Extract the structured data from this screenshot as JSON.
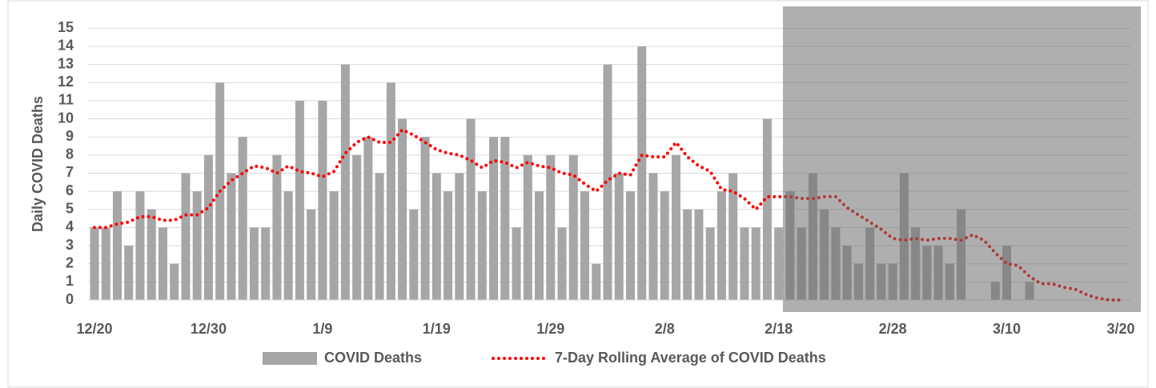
{
  "chart_data": {
    "type": "bar_line",
    "y_label": "Daily COVID Deaths",
    "categories": [
      "12/20",
      null,
      null,
      null,
      null,
      null,
      null,
      null,
      null,
      null,
      "12/30",
      null,
      null,
      null,
      null,
      null,
      null,
      null,
      null,
      null,
      "1/9",
      null,
      null,
      null,
      null,
      null,
      null,
      null,
      null,
      null,
      "1/19",
      null,
      null,
      null,
      null,
      null,
      null,
      null,
      null,
      null,
      "1/29",
      null,
      null,
      null,
      null,
      null,
      null,
      null,
      null,
      null,
      "2/8",
      null,
      null,
      null,
      null,
      null,
      null,
      null,
      null,
      null,
      "2/18",
      null,
      null,
      null,
      null,
      null,
      null,
      null,
      null,
      null,
      "2/28",
      null,
      null,
      null,
      null,
      null,
      null,
      null,
      null,
      null,
      "3/10",
      null,
      null,
      null,
      null,
      null,
      null,
      null,
      null,
      null,
      "3/20"
    ],
    "series": [
      {
        "name": "COVID Deaths",
        "type": "bar",
        "color": "#a6a6a6",
        "values": [
          4,
          4,
          6,
          3,
          6,
          5,
          4,
          2,
          7,
          6,
          8,
          12,
          7,
          9,
          4,
          4,
          8,
          6,
          11,
          5,
          11,
          6,
          13,
          8,
          9,
          7,
          12,
          10,
          5,
          9,
          7,
          6,
          7,
          10,
          6,
          9,
          9,
          4,
          8,
          6,
          8,
          4,
          8,
          6,
          2,
          13,
          7,
          6,
          14,
          7,
          6,
          8,
          5,
          5,
          4,
          6,
          7,
          4,
          4,
          10,
          4,
          6,
          4,
          7,
          5,
          4,
          3,
          2,
          4,
          2,
          2,
          7,
          4,
          3,
          3,
          2,
          5,
          0,
          0,
          1,
          3,
          0,
          1,
          0,
          0,
          0,
          0,
          0,
          0,
          0,
          0
        ]
      },
      {
        "name": "7-Day Rolling Average of COVID Deaths",
        "type": "line",
        "color": "#ff0000",
        "values": [
          4,
          4,
          4.2,
          4.3,
          4.6,
          4.6,
          4.4,
          4.4,
          4.7,
          4.7,
          5.1,
          6,
          6.6,
          7,
          7.4,
          7.3,
          7,
          7.4,
          7.1,
          7,
          6.8,
          7.1,
          8.1,
          8.7,
          9,
          8.7,
          8.7,
          9.4,
          9.1,
          8.7,
          8.3,
          8.1,
          8,
          7.7,
          7.3,
          7.7,
          7.6,
          7.3,
          7.6,
          7.4,
          7.3,
          7,
          6.9,
          6.4,
          6,
          6.6,
          7,
          6.9,
          8,
          7.9,
          7.9,
          8.7,
          7.9,
          7.4,
          7.1,
          6.1,
          6,
          5.6,
          5,
          5.7,
          5.7,
          5.7,
          5.6,
          5.6,
          5.7,
          5.7,
          5.1,
          4.7,
          4.3,
          3.9,
          3.4,
          3.3,
          3.4,
          3.3,
          3.4,
          3.4,
          3.3,
          3.6,
          3.3,
          2.6,
          2,
          1.9,
          1.3,
          0.9,
          0.9,
          0.7,
          0.6,
          0.3,
          0.1,
          0,
          0
        ]
      }
    ],
    "ylim": [
      0,
      15.5
    ],
    "yticks": [
      0,
      1,
      2,
      3,
      4,
      5,
      6,
      7,
      8,
      9,
      10,
      11,
      12,
      13,
      14,
      15
    ],
    "grid": true
  }
}
